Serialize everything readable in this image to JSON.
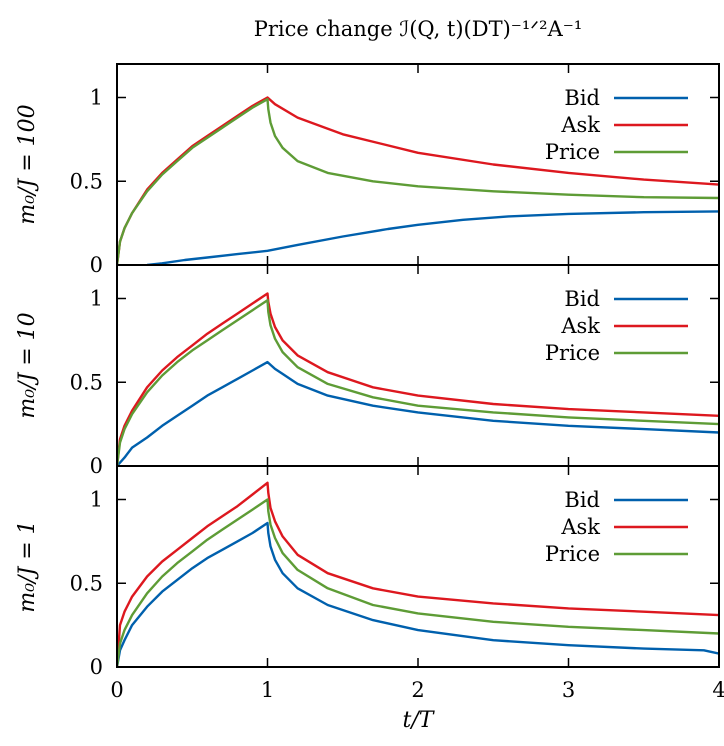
{
  "title": "Price change ℐ(Q, t)(DT)⁻¹ᐟ²A⁻¹",
  "xlabel": "t/T",
  "x_ticks": [
    "0",
    "1",
    "2",
    "3",
    "4"
  ],
  "colors": {
    "Bid": "#0060ad",
    "Ask": "#dd181f",
    "Price": "#5e9c36"
  },
  "chart_data": [
    {
      "type": "line",
      "ylabel": "m₀/J = 100",
      "xlim": [
        0,
        4
      ],
      "ylim": [
        0,
        1.2
      ],
      "y_ticks": [
        "0",
        "0.5",
        "1"
      ],
      "legend": "top-right",
      "series": [
        {
          "name": "Bid",
          "x": [
            0.2,
            0.3,
            0.45,
            0.6,
            0.8,
            1.0,
            1.2,
            1.5,
            1.8,
            2.0,
            2.3,
            2.6,
            3.0,
            3.5,
            4.0
          ],
          "y": [
            0.0,
            0.01,
            0.03,
            0.045,
            0.065,
            0.085,
            0.12,
            0.17,
            0.215,
            0.24,
            0.27,
            0.29,
            0.305,
            0.315,
            0.32
          ]
        },
        {
          "name": "Ask",
          "x": [
            0,
            0.02,
            0.05,
            0.1,
            0.2,
            0.3,
            0.4,
            0.5,
            0.6,
            0.7,
            0.8,
            0.9,
            1.0,
            1.05,
            1.2,
            1.5,
            2.0,
            2.5,
            3.0,
            3.5,
            4.0
          ],
          "y": [
            0.0,
            0.14,
            0.22,
            0.31,
            0.45,
            0.55,
            0.63,
            0.71,
            0.77,
            0.83,
            0.89,
            0.95,
            1.0,
            0.96,
            0.88,
            0.78,
            0.67,
            0.6,
            0.55,
            0.51,
            0.48
          ]
        },
        {
          "name": "Price",
          "x": [
            0,
            0.02,
            0.05,
            0.1,
            0.2,
            0.3,
            0.4,
            0.5,
            0.6,
            0.7,
            0.8,
            0.9,
            1.0,
            1.005,
            1.02,
            1.05,
            1.1,
            1.2,
            1.4,
            1.7,
            2.0,
            2.5,
            3.0,
            3.5,
            4.0
          ],
          "y": [
            0.0,
            0.14,
            0.22,
            0.31,
            0.44,
            0.54,
            0.62,
            0.7,
            0.76,
            0.82,
            0.88,
            0.94,
            0.99,
            0.93,
            0.85,
            0.77,
            0.7,
            0.62,
            0.55,
            0.5,
            0.47,
            0.44,
            0.42,
            0.405,
            0.4
          ]
        }
      ]
    },
    {
      "type": "line",
      "ylabel": "m₀/J = 10",
      "xlim": [
        0,
        4
      ],
      "ylim": [
        0,
        1.2
      ],
      "y_ticks": [
        "0",
        "0.5",
        "1"
      ],
      "legend": "top-right",
      "series": [
        {
          "name": "Bid",
          "x": [
            0,
            0.05,
            0.1,
            0.2,
            0.3,
            0.4,
            0.5,
            0.6,
            0.7,
            0.8,
            0.9,
            1.0,
            1.05,
            1.1,
            1.2,
            1.4,
            1.7,
            2.0,
            2.5,
            3.0,
            3.5,
            4.0
          ],
          "y": [
            0.0,
            0.05,
            0.11,
            0.17,
            0.24,
            0.3,
            0.36,
            0.42,
            0.47,
            0.52,
            0.57,
            0.62,
            0.58,
            0.55,
            0.49,
            0.42,
            0.36,
            0.32,
            0.27,
            0.24,
            0.22,
            0.2
          ]
        },
        {
          "name": "Ask",
          "x": [
            0,
            0.02,
            0.05,
            0.1,
            0.2,
            0.3,
            0.4,
            0.5,
            0.6,
            0.7,
            0.8,
            0.9,
            1.0,
            1.005,
            1.02,
            1.05,
            1.1,
            1.2,
            1.4,
            1.7,
            2.0,
            2.5,
            3.0,
            3.5,
            4.0
          ],
          "y": [
            0.0,
            0.16,
            0.24,
            0.33,
            0.47,
            0.57,
            0.65,
            0.72,
            0.79,
            0.85,
            0.91,
            0.97,
            1.03,
            0.98,
            0.91,
            0.83,
            0.75,
            0.66,
            0.56,
            0.47,
            0.42,
            0.37,
            0.34,
            0.32,
            0.3
          ]
        },
        {
          "name": "Price",
          "x": [
            0,
            0.02,
            0.05,
            0.1,
            0.2,
            0.3,
            0.4,
            0.5,
            0.6,
            0.7,
            0.8,
            0.9,
            1.0,
            1.005,
            1.02,
            1.05,
            1.1,
            1.2,
            1.4,
            1.7,
            2.0,
            2.5,
            3.0,
            3.5,
            4.0
          ],
          "y": [
            0.0,
            0.14,
            0.22,
            0.31,
            0.44,
            0.54,
            0.62,
            0.69,
            0.75,
            0.81,
            0.87,
            0.93,
            0.99,
            0.92,
            0.84,
            0.76,
            0.68,
            0.59,
            0.49,
            0.41,
            0.36,
            0.32,
            0.29,
            0.27,
            0.25
          ]
        }
      ]
    },
    {
      "type": "line",
      "ylabel": "m₀/J = 1",
      "xlim": [
        0,
        4
      ],
      "ylim": [
        0,
        1.2
      ],
      "y_ticks": [
        "0",
        "0.5",
        "1"
      ],
      "legend": "top-right",
      "series": [
        {
          "name": "Bid",
          "x": [
            0,
            0.02,
            0.05,
            0.1,
            0.2,
            0.3,
            0.4,
            0.5,
            0.6,
            0.7,
            0.8,
            0.9,
            1.0,
            1.005,
            1.02,
            1.05,
            1.1,
            1.2,
            1.4,
            1.7,
            2.0,
            2.5,
            3.0,
            3.5,
            3.9,
            4.0
          ],
          "y": [
            0.0,
            0.1,
            0.16,
            0.25,
            0.36,
            0.45,
            0.52,
            0.59,
            0.65,
            0.7,
            0.75,
            0.8,
            0.86,
            0.8,
            0.72,
            0.64,
            0.56,
            0.47,
            0.37,
            0.28,
            0.22,
            0.16,
            0.13,
            0.11,
            0.1,
            0.08
          ]
        },
        {
          "name": "Ask",
          "x": [
            0,
            0.02,
            0.05,
            0.1,
            0.2,
            0.3,
            0.4,
            0.5,
            0.6,
            0.7,
            0.8,
            0.9,
            1.0,
            1.005,
            1.02,
            1.05,
            1.1,
            1.2,
            1.4,
            1.7,
            2.0,
            2.5,
            3.0,
            3.5,
            4.0
          ],
          "y": [
            0.0,
            0.25,
            0.33,
            0.42,
            0.54,
            0.63,
            0.7,
            0.77,
            0.84,
            0.9,
            0.96,
            1.03,
            1.1,
            1.04,
            0.95,
            0.87,
            0.78,
            0.67,
            0.56,
            0.47,
            0.42,
            0.38,
            0.35,
            0.33,
            0.31
          ]
        },
        {
          "name": "Price",
          "x": [
            0,
            0.02,
            0.05,
            0.1,
            0.2,
            0.3,
            0.4,
            0.5,
            0.6,
            0.7,
            0.8,
            0.9,
            1.0,
            1.005,
            1.02,
            1.05,
            1.1,
            1.2,
            1.4,
            1.7,
            2.0,
            2.5,
            3.0,
            3.5,
            4.0
          ],
          "y": [
            0.0,
            0.14,
            0.22,
            0.31,
            0.44,
            0.54,
            0.62,
            0.69,
            0.76,
            0.82,
            0.88,
            0.94,
            1.0,
            0.93,
            0.85,
            0.77,
            0.68,
            0.58,
            0.47,
            0.37,
            0.32,
            0.27,
            0.24,
            0.22,
            0.2
          ]
        }
      ]
    }
  ]
}
